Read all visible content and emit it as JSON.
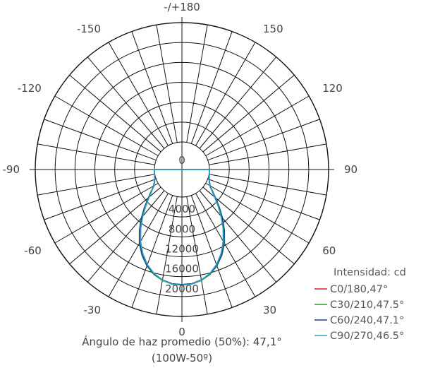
{
  "chart_data": {
    "type": "polar",
    "angle_labels": [
      {
        "angle": 180,
        "text": "-/+180"
      },
      {
        "angle": -150,
        "text": "-150"
      },
      {
        "angle": 150,
        "text": "150"
      },
      {
        "angle": -120,
        "text": "-120"
      },
      {
        "angle": 120,
        "text": "120"
      },
      {
        "angle": -90,
        "text": "-90"
      },
      {
        "angle": 90,
        "text": "90"
      },
      {
        "angle": -60,
        "text": "-60"
      },
      {
        "angle": 60,
        "text": "60"
      },
      {
        "angle": -30,
        "text": "-30"
      },
      {
        "angle": 30,
        "text": "30"
      },
      {
        "angle": 0,
        "text": "0"
      }
    ],
    "radial_ticks": [
      {
        "value": 0,
        "label": "0"
      },
      {
        "value": 4000,
        "label": "4000"
      },
      {
        "value": 8000,
        "label": "8000"
      },
      {
        "value": 12000,
        "label": "12000"
      },
      {
        "value": 16000,
        "label": "16000"
      },
      {
        "value": 20000,
        "label": "20000"
      }
    ],
    "radial_range": [
      0,
      20000
    ],
    "radial_rings": [
      0,
      4000,
      8000,
      12000,
      16000,
      20000,
      24000
    ],
    "angle_step_deg": 10,
    "legend_title": "Intensidad: cd",
    "legend_position": "bottom-right",
    "caption_line1": "Ángulo de haz promedio (50%): 47,1°",
    "caption_line2": "(100W-50º)",
    "series": [
      {
        "name": "C0/180,47°",
        "color": "#d62728",
        "angles": [
          0,
          5,
          10,
          15,
          20,
          25,
          30,
          35,
          40,
          45,
          50,
          55,
          60,
          70,
          90
        ],
        "values": [
          17600,
          17500,
          17000,
          16200,
          15000,
          13400,
          11500,
          9300,
          7100,
          5000,
          3200,
          1900,
          1000,
          300,
          0
        ]
      },
      {
        "name": "C30/210,47.5°",
        "color": "#2ca02c",
        "angles": [
          0,
          5,
          10,
          15,
          20,
          25,
          30,
          35,
          40,
          45,
          50,
          55,
          60,
          70,
          90
        ],
        "values": [
          17700,
          17600,
          17100,
          16300,
          15100,
          13500,
          11600,
          9400,
          7200,
          5100,
          3300,
          2000,
          1000,
          300,
          0
        ]
      },
      {
        "name": "C60/240,47.1°",
        "color": "#1f3f9e",
        "angles": [
          0,
          5,
          10,
          15,
          20,
          25,
          30,
          35,
          40,
          45,
          50,
          55,
          60,
          70,
          90
        ],
        "values": [
          17600,
          17500,
          17000,
          16200,
          15000,
          13400,
          11500,
          9300,
          7100,
          5000,
          3200,
          1900,
          1000,
          300,
          0
        ]
      },
      {
        "name": "C90/270,46.5°",
        "color": "#2aa7c4",
        "angles": [
          0,
          5,
          10,
          15,
          20,
          25,
          30,
          35,
          40,
          45,
          50,
          55,
          60,
          70,
          90
        ],
        "values": [
          17700,
          17600,
          17000,
          16100,
          14800,
          13100,
          11100,
          8900,
          6700,
          4700,
          3000,
          1800,
          900,
          250,
          0
        ]
      }
    ]
  }
}
